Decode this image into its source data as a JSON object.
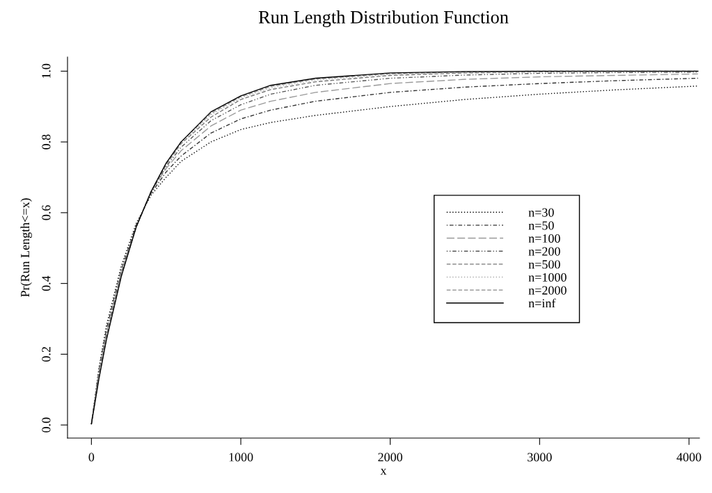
{
  "chart_data": {
    "type": "line",
    "title": "Run Length Distribution Function",
    "xlabel": "x",
    "ylabel": "Pr(Run Length<=x)",
    "x": [
      0,
      50,
      100,
      200,
      300,
      400,
      500,
      600,
      800,
      1000,
      1200,
      1500,
      2000,
      2500,
      3000,
      3500,
      4060
    ],
    "series": [
      {
        "name": "n=30",
        "color": "#000000",
        "line_style": "dotted",
        "values": [
          0.003,
          0.16,
          0.28,
          0.45,
          0.57,
          0.65,
          0.7,
          0.745,
          0.8,
          0.835,
          0.855,
          0.875,
          0.9,
          0.92,
          0.935,
          0.947,
          0.958
        ]
      },
      {
        "name": "n=50",
        "color": "#333333",
        "line_style": "dashdot",
        "values": [
          0.003,
          0.155,
          0.27,
          0.44,
          0.565,
          0.655,
          0.715,
          0.76,
          0.825,
          0.865,
          0.89,
          0.915,
          0.94,
          0.955,
          0.965,
          0.973,
          0.98
        ]
      },
      {
        "name": "n=100",
        "color": "#999999",
        "line_style": "longdash",
        "values": [
          0.003,
          0.15,
          0.26,
          0.435,
          0.56,
          0.66,
          0.725,
          0.775,
          0.845,
          0.89,
          0.915,
          0.94,
          0.965,
          0.977,
          0.984,
          0.988,
          0.992
        ]
      },
      {
        "name": "n=200",
        "color": "#555555",
        "line_style": "twodash",
        "values": [
          0.003,
          0.145,
          0.255,
          0.43,
          0.56,
          0.66,
          0.73,
          0.785,
          0.86,
          0.905,
          0.935,
          0.96,
          0.98,
          0.989,
          0.994,
          0.996,
          0.997
        ]
      },
      {
        "name": "n=500",
        "color": "#777777",
        "line_style": "dashed",
        "values": [
          0.003,
          0.14,
          0.25,
          0.425,
          0.56,
          0.66,
          0.735,
          0.795,
          0.87,
          0.92,
          0.948,
          0.97,
          0.988,
          0.995,
          0.998,
          0.999,
          0.999
        ]
      },
      {
        "name": "n=1000",
        "color": "#aaaaaa",
        "line_style": "dotted",
        "values": [
          0.003,
          0.135,
          0.245,
          0.425,
          0.56,
          0.66,
          0.737,
          0.797,
          0.877,
          0.925,
          0.953,
          0.975,
          0.991,
          0.997,
          0.999,
          1.0,
          1.0
        ]
      },
      {
        "name": "n=2000",
        "color": "#888888",
        "line_style": "dashed",
        "values": [
          0.003,
          0.133,
          0.243,
          0.422,
          0.56,
          0.66,
          0.739,
          0.8,
          0.881,
          0.928,
          0.957,
          0.978,
          0.993,
          0.998,
          1.0,
          1.0,
          1.0
        ]
      },
      {
        "name": "n=inf",
        "color": "#000000",
        "line_style": "solid",
        "values": [
          0.003,
          0.13,
          0.24,
          0.42,
          0.56,
          0.66,
          0.74,
          0.8,
          0.885,
          0.93,
          0.96,
          0.98,
          0.995,
          0.999,
          1.0,
          1.0,
          1.0
        ]
      }
    ],
    "xlim": [
      -160,
      4070
    ],
    "ylim": [
      -0.037,
      1.04
    ],
    "xticks": [
      0,
      1000,
      2000,
      3000,
      4000
    ],
    "yticks": [
      {
        "value": 0,
        "label": "0.0"
      },
      {
        "value": 0.2,
        "label": "0.2"
      },
      {
        "value": 0.4,
        "label": "0.4"
      },
      {
        "value": 0.6,
        "label": "0.6"
      },
      {
        "value": 0.8,
        "label": "0.8"
      },
      {
        "value": 1,
        "label": "1.0"
      }
    ],
    "grid": false,
    "legend": "right"
  }
}
